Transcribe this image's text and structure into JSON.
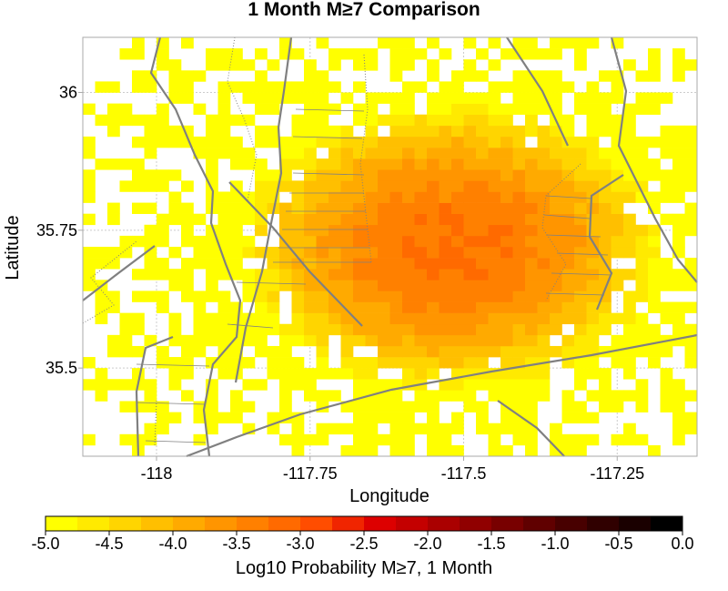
{
  "chart_data": {
    "type": "heatmap",
    "title": "1 Month M≥7 Comparison",
    "xlabel": "Longitude",
    "ylabel": "Latitude",
    "xlim": [
      -118.12,
      -117.12
    ],
    "ylim": [
      35.34,
      36.1
    ],
    "x_ticks": [
      -118,
      -117.75,
      -117.5,
      -117.25
    ],
    "x_tick_labels": [
      "-118",
      "-117.75",
      "-117.5",
      "-117.25"
    ],
    "y_ticks": [
      35.5,
      35.75,
      36
    ],
    "y_tick_labels": [
      "35.5",
      "35.75",
      "36"
    ],
    "grid": true,
    "cell_size_deg": 0.02,
    "hotspot": {
      "lon": -117.52,
      "lat": 35.72,
      "peak_log10_prob": -3.2
    },
    "colorbar": {
      "label": "Log10 Probability M≥7, 1 Month",
      "range": [
        -5.0,
        0.0
      ],
      "ticks": [
        -5.0,
        -4.5,
        -4.0,
        -3.5,
        -3.0,
        -2.5,
        -2.0,
        -1.5,
        -1.0,
        -0.5,
        0.0
      ],
      "tick_labels": [
        "-5.0",
        "-4.5",
        "-4.0",
        "-3.5",
        "-3.0",
        "-2.5",
        "-2.0",
        "-1.5",
        "-1.0",
        "-0.5",
        "0.0"
      ],
      "colors": [
        "#ffff00",
        "#ffea00",
        "#ffd500",
        "#ffbf00",
        "#ffaa00",
        "#ff9500",
        "#ff8000",
        "#ff6a00",
        "#ff4d00",
        "#f02500",
        "#dd0000",
        "#c40000",
        "#aa0000",
        "#900000",
        "#780000",
        "#600000",
        "#480000",
        "#300000",
        "#1a0000",
        "#000000"
      ]
    },
    "fault_lines_color": "#808080"
  }
}
